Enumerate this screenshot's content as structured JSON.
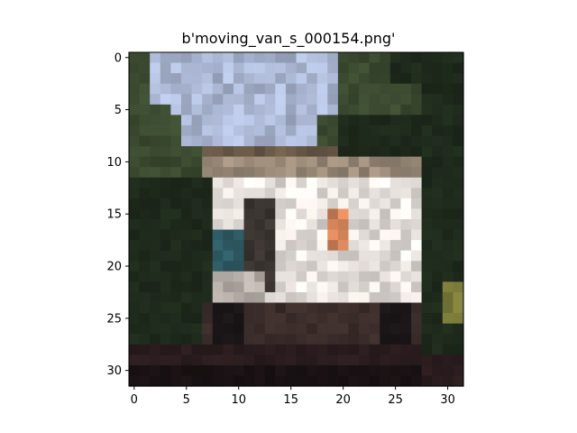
{
  "figure": {
    "title": "b'moving_van_s_000154.png'"
  },
  "image": {
    "subject": "pixelated 32x32 photo of a white moving van parked by trees under a pale sky",
    "grid_size": 32,
    "palette": {
      "sky": "#aab6d2",
      "foliage_dark": "#1e2a1c",
      "foliage_mid": "#3b4a30",
      "van_body": "#e6e0dc",
      "van_shadow": "#b8b0aa",
      "van_orange": "#d4845a",
      "window_teal": "#2e5a64",
      "road": "#2a1c1e",
      "ground_dark": "#1a1214"
    }
  },
  "axes": {
    "x_ticks": [
      "0",
      "5",
      "10",
      "15",
      "20",
      "25",
      "30"
    ],
    "y_ticks": [
      "0",
      "5",
      "10",
      "15",
      "20",
      "25",
      "30"
    ]
  }
}
